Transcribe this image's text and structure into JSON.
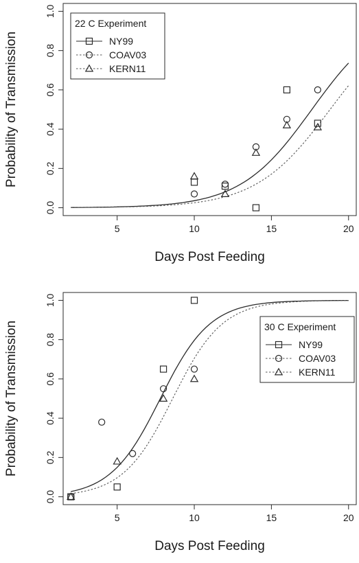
{
  "chart_data": [
    {
      "type": "scatter",
      "title": "",
      "xlabel": "Days Post Feeding",
      "ylabel": "Probability of Transmission",
      "xlim": [
        1.5,
        20.5
      ],
      "ylim": [
        -0.04,
        1.04
      ],
      "x_ticks": [
        "5",
        "10",
        "15",
        "20"
      ],
      "y_ticks": [
        "0.0",
        "0.2",
        "0.4",
        "0.6",
        "0.8",
        "1.0"
      ],
      "grid": false,
      "legend_position": "top-left",
      "legend_title": "22 C Experiment",
      "series": [
        {
          "name": "NY99",
          "marker": "square",
          "line": "solid",
          "points": [
            [
              10,
              0.13
            ],
            [
              12,
              0.11
            ],
            [
              14,
              0.0
            ],
            [
              16,
              0.6
            ],
            [
              18,
              0.43
            ]
          ],
          "fit": {
            "midpoint": 17.62,
            "slope": 0.432
          }
        },
        {
          "name": "COAV03",
          "marker": "circle",
          "line": "dotted",
          "points": [
            [
              10,
              0.07
            ],
            [
              12,
              0.12
            ],
            [
              14,
              0.31
            ],
            [
              16,
              0.45
            ],
            [
              18,
              0.6
            ]
          ],
          "fit": {
            "midpoint": 18.8,
            "slope": 0.415
          }
        },
        {
          "name": "KERN11",
          "marker": "triangle",
          "line": "dotted",
          "points": [
            [
              10,
              0.16
            ],
            [
              12,
              0.07
            ],
            [
              14,
              0.28
            ],
            [
              16,
              0.42
            ],
            [
              18,
              0.41
            ]
          ]
        }
      ]
    },
    {
      "type": "scatter",
      "title": "",
      "xlabel": "Days Post Feeding",
      "ylabel": "Probability of Transmission",
      "xlim": [
        1.5,
        20.5
      ],
      "ylim": [
        -0.04,
        1.04
      ],
      "x_ticks": [
        "5",
        "10",
        "15",
        "20"
      ],
      "y_ticks": [
        "0.0",
        "0.2",
        "0.4",
        "0.6",
        "0.8",
        "1.0"
      ],
      "grid": false,
      "legend_position": "top-right",
      "legend_title": "30 C Experiment",
      "series": [
        {
          "name": "NY99",
          "marker": "square",
          "line": "solid",
          "points": [
            [
              2,
              0.0
            ],
            [
              5,
              0.05
            ],
            [
              8,
              0.65
            ],
            [
              10,
              1.0
            ]
          ],
          "fit": {
            "midpoint": 7.8,
            "slope": 0.62
          }
        },
        {
          "name": "COAV03",
          "marker": "circle",
          "line": "dotted",
          "points": [
            [
              2,
              0.0
            ],
            [
              4,
              0.38
            ],
            [
              6,
              0.22
            ],
            [
              8,
              0.55
            ],
            [
              10,
              0.65
            ]
          ],
          "fit": {
            "midpoint": 8.6,
            "slope": 0.62
          }
        },
        {
          "name": "KERN11",
          "marker": "triangle",
          "line": "dotted",
          "points": [
            [
              2,
              0.0
            ],
            [
              5,
              0.18
            ],
            [
              8,
              0.5
            ],
            [
              10,
              0.6
            ]
          ]
        }
      ]
    }
  ]
}
